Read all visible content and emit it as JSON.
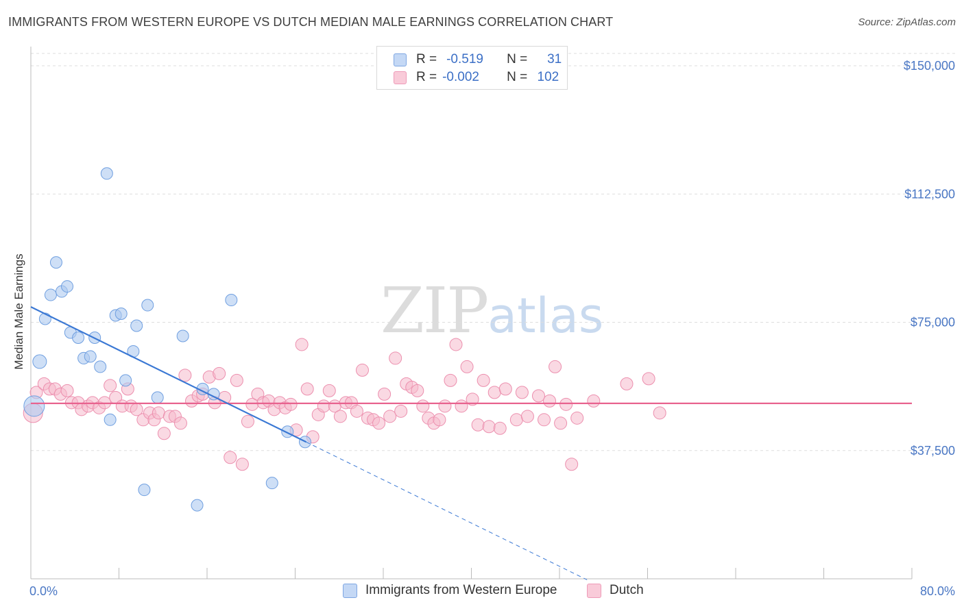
{
  "title": "IMMIGRANTS FROM WESTERN EUROPE VS DUTCH MEDIAN MALE EARNINGS CORRELATION CHART",
  "source": "Source: ZipAtlas.com",
  "watermark": {
    "zip": "ZIP",
    "atlas": "atlas"
  },
  "legend_top": {
    "rows": [
      {
        "r_label": "R =",
        "r_value": "-0.519",
        "n_label": "N =",
        "n_value": "31"
      },
      {
        "r_label": "R =",
        "r_value": "-0.002",
        "n_label": "N =",
        "n_value": "102"
      }
    ]
  },
  "legend_bottom": {
    "series1": "Immigrants from Western Europe",
    "series2": "Dutch"
  },
  "colors": {
    "blue_fill": "#aec9f0",
    "blue_stroke": "#6f9fe0",
    "blue_line": "#3a78d4",
    "pink_fill": "#f6b9cc",
    "pink_stroke": "#ec8fae",
    "pink_line": "#e8638f",
    "grid": "#dddddd",
    "tick_text": "#4a77c4"
  },
  "chart_data": {
    "type": "scatter",
    "title": "IMMIGRANTS FROM WESTERN EUROPE VS DUTCH MEDIAN MALE EARNINGS CORRELATION CHART",
    "xlabel": "",
    "ylabel": "Median Male Earnings",
    "xlim": [
      0,
      80
    ],
    "ylim": [
      0,
      150000
    ],
    "x_tick_labels": [
      "0.0%",
      "80.0%"
    ],
    "y_tick_values": [
      37500,
      75000,
      112500,
      150000
    ],
    "y_tick_labels": [
      "$37,500",
      "$75,000",
      "$112,500",
      "$150,000"
    ],
    "grid": true,
    "legend_position": "top-center",
    "series": [
      {
        "name": "Immigrants from Western Europe",
        "points": [
          [
            0.3,
            50500
          ],
          [
            0.8,
            63500
          ],
          [
            1.3,
            76000
          ],
          [
            1.8,
            83000
          ],
          [
            2.3,
            92500
          ],
          [
            2.8,
            84000
          ],
          [
            3.3,
            85500
          ],
          [
            3.6,
            72000
          ],
          [
            4.3,
            70500
          ],
          [
            4.8,
            64500
          ],
          [
            5.4,
            65000
          ],
          [
            5.8,
            70500
          ],
          [
            6.3,
            62000
          ],
          [
            6.9,
            118500
          ],
          [
            7.2,
            46500
          ],
          [
            7.7,
            77000
          ],
          [
            8.2,
            77500
          ],
          [
            8.6,
            58000
          ],
          [
            9.3,
            66500
          ],
          [
            9.6,
            74000
          ],
          [
            10.3,
            26000
          ],
          [
            10.6,
            80000
          ],
          [
            11.5,
            53000
          ],
          [
            13.8,
            71000
          ],
          [
            15.1,
            21500
          ],
          [
            15.6,
            55500
          ],
          [
            16.6,
            54000
          ],
          [
            18.2,
            81500
          ],
          [
            21.9,
            28000
          ],
          [
            23.3,
            43000
          ],
          [
            24.9,
            40000
          ]
        ],
        "trend": {
          "x": [
            0,
            25
          ],
          "y": [
            79500,
            40000
          ],
          "dashed_extension_to_x": 50.5
        }
      },
      {
        "name": "Dutch",
        "points": [
          [
            0.2,
            48500
          ],
          [
            0.5,
            54500
          ],
          [
            1.2,
            57000
          ],
          [
            1.7,
            55500
          ],
          [
            2.2,
            55500
          ],
          [
            2.7,
            54000
          ],
          [
            3.3,
            55000
          ],
          [
            3.7,
            51500
          ],
          [
            4.3,
            51500
          ],
          [
            4.6,
            49500
          ],
          [
            5.2,
            50500
          ],
          [
            5.6,
            51500
          ],
          [
            6.2,
            50000
          ],
          [
            6.7,
            51500
          ],
          [
            7.2,
            56500
          ],
          [
            7.7,
            53000
          ],
          [
            8.3,
            50500
          ],
          [
            8.8,
            55500
          ],
          [
            9.1,
            50500
          ],
          [
            9.6,
            49500
          ],
          [
            10.2,
            46500
          ],
          [
            10.8,
            48500
          ],
          [
            11.2,
            46500
          ],
          [
            11.6,
            48500
          ],
          [
            12.1,
            42500
          ],
          [
            12.6,
            47500
          ],
          [
            13.1,
            47500
          ],
          [
            13.6,
            45500
          ],
          [
            14.0,
            59500
          ],
          [
            14.6,
            52000
          ],
          [
            15.2,
            53500
          ],
          [
            15.6,
            54000
          ],
          [
            16.2,
            59000
          ],
          [
            16.7,
            51500
          ],
          [
            17.1,
            60000
          ],
          [
            17.6,
            53000
          ],
          [
            18.1,
            35500
          ],
          [
            18.7,
            58000
          ],
          [
            19.2,
            33500
          ],
          [
            19.7,
            46000
          ],
          [
            20.1,
            51000
          ],
          [
            20.6,
            54000
          ],
          [
            21.1,
            51500
          ],
          [
            21.6,
            52000
          ],
          [
            22.1,
            49500
          ],
          [
            22.6,
            51500
          ],
          [
            23.1,
            50000
          ],
          [
            23.6,
            51000
          ],
          [
            24.1,
            43500
          ],
          [
            24.6,
            68500
          ],
          [
            25.1,
            55500
          ],
          [
            25.6,
            41500
          ],
          [
            26.1,
            48000
          ],
          [
            26.6,
            50500
          ],
          [
            27.1,
            55000
          ],
          [
            27.6,
            50500
          ],
          [
            28.1,
            47500
          ],
          [
            28.6,
            51500
          ],
          [
            29.1,
            51500
          ],
          [
            29.6,
            49000
          ],
          [
            30.1,
            61000
          ],
          [
            30.6,
            47000
          ],
          [
            31.1,
            46500
          ],
          [
            31.6,
            45500
          ],
          [
            32.1,
            54000
          ],
          [
            32.6,
            47500
          ],
          [
            33.1,
            64500
          ],
          [
            33.6,
            49000
          ],
          [
            34.1,
            57000
          ],
          [
            34.6,
            56000
          ],
          [
            35.1,
            55000
          ],
          [
            35.6,
            50500
          ],
          [
            36.1,
            47000
          ],
          [
            36.6,
            45500
          ],
          [
            37.1,
            46500
          ],
          [
            37.6,
            50500
          ],
          [
            38.1,
            58000
          ],
          [
            38.6,
            68500
          ],
          [
            39.1,
            50500
          ],
          [
            39.6,
            62000
          ],
          [
            40.1,
            52500
          ],
          [
            40.6,
            45000
          ],
          [
            41.1,
            58000
          ],
          [
            41.6,
            44500
          ],
          [
            42.1,
            54500
          ],
          [
            42.6,
            44000
          ],
          [
            43.1,
            55500
          ],
          [
            44.1,
            46500
          ],
          [
            44.6,
            54500
          ],
          [
            45.1,
            47500
          ],
          [
            46.1,
            53500
          ],
          [
            46.6,
            46500
          ],
          [
            47.1,
            52000
          ],
          [
            47.6,
            62000
          ],
          [
            48.1,
            45500
          ],
          [
            48.6,
            51000
          ],
          [
            49.1,
            33500
          ],
          [
            49.6,
            47000
          ],
          [
            51.1,
            52000
          ],
          [
            54.1,
            57000
          ],
          [
            56.1,
            58500
          ],
          [
            57.1,
            48500
          ]
        ],
        "trend": {
          "x": [
            0,
            80
          ],
          "y": [
            51300,
            51300
          ]
        }
      }
    ]
  }
}
